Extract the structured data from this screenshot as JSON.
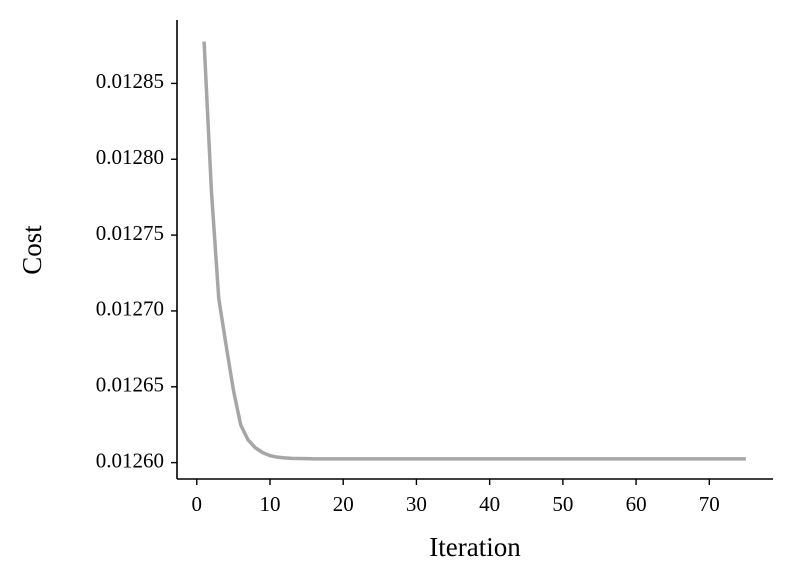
{
  "chart_data": {
    "type": "line",
    "x_label": "Iteration",
    "y_label": "Cost",
    "x": [
      1,
      2,
      3,
      4,
      5,
      6,
      7,
      8,
      9,
      10,
      11,
      12,
      13,
      14,
      15,
      16,
      17,
      18,
      19,
      20,
      21,
      22,
      23,
      24,
      25,
      26,
      27,
      28,
      29,
      30,
      31,
      32,
      33,
      34,
      35,
      36,
      37,
      38,
      39,
      40,
      41,
      42,
      43,
      44,
      45,
      46,
      47,
      48,
      49,
      50,
      51,
      52,
      53,
      54,
      55,
      56,
      57,
      58,
      59,
      60,
      61,
      62,
      63,
      64,
      65,
      66,
      67,
      68,
      69,
      70,
      71,
      72,
      73,
      74,
      75
    ],
    "series": [
      {
        "color": "#a6a6a6",
        "values": [
          0.0128776,
          0.0127791,
          0.0127083,
          0.0126775,
          0.0126479,
          0.0126249,
          0.012615,
          0.0126098,
          0.0126066,
          0.0126046,
          0.0126036,
          0.0126031,
          0.0126028,
          0.0126027,
          0.0126026,
          0.0126025,
          0.0126025,
          0.0126025,
          0.0126025,
          0.0126025,
          0.0126025,
          0.0126025,
          0.0126025,
          0.0126025,
          0.0126025,
          0.0126025,
          0.0126025,
          0.0126025,
          0.0126025,
          0.0126025,
          0.0126025,
          0.0126025,
          0.0126025,
          0.0126025,
          0.0126025,
          0.0126025,
          0.0126025,
          0.0126025,
          0.0126025,
          0.0126025,
          0.0126025,
          0.0126025,
          0.0126025,
          0.0126025,
          0.0126025,
          0.0126025,
          0.0126025,
          0.0126025,
          0.0126025,
          0.0126025,
          0.0126025,
          0.0126025,
          0.0126025,
          0.0126025,
          0.0126025,
          0.0126025,
          0.0126025,
          0.0126025,
          0.0126025,
          0.0126025,
          0.0126025,
          0.0126025,
          0.0126025,
          0.0126025,
          0.0126025,
          0.0126025,
          0.0126025,
          0.0126025,
          0.0126025,
          0.0126025,
          0.0126025,
          0.0126025,
          0.0126025,
          0.0126025,
          0.0126025
        ]
      }
    ],
    "xlim": [
      -2.7,
      78.7
    ],
    "xticks": [
      0,
      10,
      20,
      30,
      40,
      50,
      60,
      70
    ],
    "ylim": [
      0.0125892,
      0.0128918
    ],
    "yticks": [
      {
        "value": 0.0126,
        "label": "0.01260"
      },
      0.01265,
      {
        "value": 0.0127,
        "label": "0.01270"
      },
      0.01275,
      {
        "value": 0.0128,
        "label": "0.01280"
      },
      0.01285
    ],
    "grid": false
  }
}
